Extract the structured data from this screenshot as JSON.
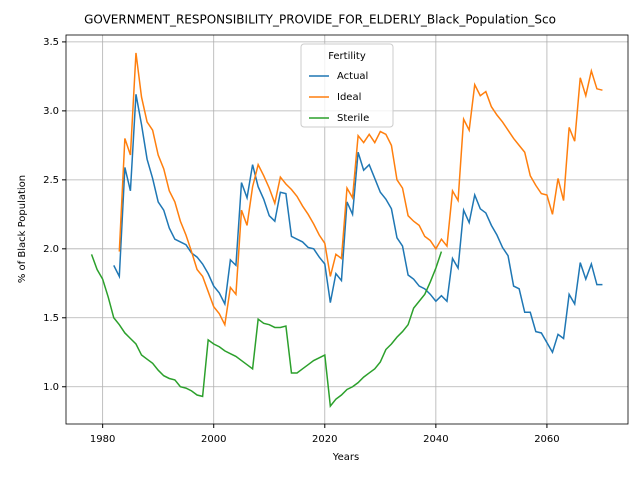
{
  "chart_data": {
    "type": "line",
    "title": "GOVERNMENT_RESPONSIBILITY_PROVIDE_FOR_ELDERLY_Black_Population_Sco",
    "x_label": "Years",
    "y_label": "% of Black Population",
    "legend_title": "Fertility",
    "legend_position": "upper center",
    "grid": true,
    "x": [
      1978,
      1979,
      1980,
      1981,
      1982,
      1983,
      1984,
      1985,
      1986,
      1987,
      1988,
      1989,
      1990,
      1991,
      1992,
      1993,
      1994,
      1995,
      1996,
      1997,
      1998,
      1999,
      2000,
      2001,
      2002,
      2003,
      2004,
      2005,
      2006,
      2007,
      2008,
      2009,
      2010,
      2011,
      2012,
      2013,
      2014,
      2015,
      2016,
      2017,
      2018,
      2019,
      2020,
      2021,
      2022,
      2023,
      2024,
      2025,
      2026,
      2027,
      2028,
      2029,
      2030,
      2031,
      2032,
      2033,
      2034,
      2035,
      2036,
      2037,
      2038,
      2039,
      2040,
      2041,
      2042,
      2043,
      2044,
      2045,
      2046,
      2047,
      2048,
      2049,
      2050,
      2051,
      2052,
      2053,
      2054,
      2055,
      2056,
      2057,
      2058,
      2059,
      2060,
      2061,
      2062,
      2063,
      2064,
      2065,
      2066,
      2067,
      2068,
      2069,
      2070
    ],
    "series": [
      {
        "name": "Actual",
        "color": "#1f77b4",
        "values": [
          null,
          null,
          null,
          null,
          1.88,
          1.8,
          2.59,
          2.42,
          3.12,
          2.9,
          2.65,
          2.51,
          2.34,
          2.28,
          2.15,
          2.07,
          2.05,
          2.03,
          1.97,
          1.94,
          1.89,
          1.82,
          1.73,
          1.68,
          1.6,
          1.92,
          1.88,
          2.48,
          2.37,
          2.61,
          2.45,
          2.36,
          2.24,
          2.2,
          2.41,
          2.4,
          2.09,
          2.07,
          2.05,
          2.01,
          2.0,
          1.94,
          1.89,
          1.61,
          1.82,
          1.77,
          2.34,
          2.25,
          2.7,
          2.57,
          2.61,
          2.51,
          2.41,
          2.36,
          2.29,
          2.08,
          2.02,
          1.81,
          1.78,
          1.73,
          1.71,
          1.67,
          1.62,
          1.66,
          1.62,
          1.93,
          1.86,
          2.28,
          2.19,
          2.39,
          2.29,
          2.26,
          2.17,
          2.1,
          2.01,
          1.95,
          1.73,
          1.71,
          1.54,
          1.54,
          1.4,
          1.39,
          1.32,
          1.25,
          1.38,
          1.35,
          1.67,
          1.6,
          1.9,
          1.78,
          1.89,
          1.74,
          1.74
        ]
      },
      {
        "name": "Ideal",
        "color": "#ff7f0e",
        "values": [
          null,
          null,
          null,
          null,
          null,
          1.98,
          2.8,
          2.68,
          3.42,
          3.1,
          2.92,
          2.86,
          2.68,
          2.58,
          2.42,
          2.34,
          2.2,
          2.1,
          1.98,
          1.85,
          1.8,
          1.69,
          1.58,
          1.53,
          1.45,
          1.72,
          1.67,
          2.28,
          2.17,
          2.45,
          2.61,
          2.53,
          2.44,
          2.33,
          2.52,
          2.47,
          2.43,
          2.38,
          2.31,
          2.25,
          2.18,
          2.1,
          2.04,
          1.8,
          1.96,
          1.93,
          2.44,
          2.37,
          2.82,
          2.77,
          2.83,
          2.77,
          2.85,
          2.83,
          2.75,
          2.5,
          2.44,
          2.24,
          2.2,
          2.17,
          2.09,
          2.06,
          2.0,
          2.07,
          2.02,
          2.42,
          2.35,
          2.94,
          2.86,
          3.19,
          3.11,
          3.14,
          3.03,
          2.97,
          2.92,
          2.86,
          2.8,
          2.75,
          2.7,
          2.53,
          2.46,
          2.4,
          2.39,
          2.25,
          2.51,
          2.35,
          2.88,
          2.78,
          3.24,
          3.11,
          3.29,
          3.16,
          3.15
        ]
      },
      {
        "name": "Sterile",
        "color": "#2ca02c",
        "values": [
          1.96,
          1.85,
          1.78,
          1.65,
          1.5,
          1.45,
          1.39,
          1.35,
          1.31,
          1.23,
          1.2,
          1.17,
          1.12,
          1.08,
          1.06,
          1.05,
          1.0,
          0.99,
          0.97,
          0.94,
          0.93,
          1.34,
          1.31,
          1.29,
          1.26,
          1.24,
          1.22,
          1.19,
          1.16,
          1.13,
          1.49,
          1.46,
          1.45,
          1.43,
          1.43,
          1.44,
          1.1,
          1.1,
          1.13,
          1.16,
          1.19,
          1.21,
          1.23,
          0.86,
          0.91,
          0.94,
          0.98,
          1.0,
          1.03,
          1.07,
          1.1,
          1.13,
          1.18,
          1.27,
          1.31,
          1.36,
          1.4,
          1.45,
          1.57,
          1.62,
          1.67,
          1.76,
          1.86,
          1.98,
          null,
          null,
          null,
          null,
          null,
          null,
          null,
          null,
          null,
          null,
          null,
          null,
          null,
          null,
          null,
          null,
          null,
          null,
          null,
          null,
          null,
          null,
          null,
          null,
          null,
          null,
          null,
          null,
          null
        ]
      }
    ],
    "xlim": [
      1973.4,
      2074.6
    ],
    "ylim": [
      0.73,
      3.55
    ],
    "xticks": [
      1980,
      2000,
      2020,
      2040,
      2060
    ],
    "yticks": [
      {
        "value": 1,
        "label": "1.0"
      },
      1.5,
      {
        "value": 2,
        "label": "2.0"
      },
      2.5,
      {
        "value": 3,
        "label": "3.0"
      },
      3.5
    ]
  }
}
